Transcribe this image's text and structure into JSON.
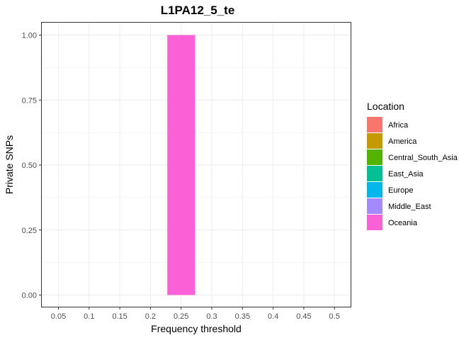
{
  "chart_data": {
    "type": "bar",
    "title": "L1PA12_5_te",
    "xlabel": "Frequency threshold",
    "ylabel": "Private SNPs",
    "categories": [
      "0.05",
      "0.1",
      "0.15",
      "0.2",
      "0.25",
      "0.3",
      "0.35",
      "0.4",
      "0.45",
      "0.5"
    ],
    "ylim": [
      0,
      1
    ],
    "yticks": [
      "0.00",
      "0.25",
      "0.50",
      "0.75",
      "1.00"
    ],
    "ytick_values": [
      0,
      0.25,
      0.5,
      0.75,
      1.0
    ],
    "grid": true,
    "legend": {
      "title": "Location",
      "placement": "right",
      "entries": [
        {
          "name": "Africa",
          "color": "#F8766D"
        },
        {
          "name": "America",
          "color": "#C49A00"
        },
        {
          "name": "Central_South_Asia",
          "color": "#53B400"
        },
        {
          "name": "East_Asia",
          "color": "#00C094"
        },
        {
          "name": "Europe",
          "color": "#00B6EB"
        },
        {
          "name": "Middle_East",
          "color": "#A58AFF"
        },
        {
          "name": "Oceania",
          "color": "#FB61D7"
        }
      ]
    },
    "series": [
      {
        "name": "Oceania",
        "color": "#FB61D7",
        "values": [
          0,
          0,
          0,
          0,
          1,
          0,
          0,
          0,
          0,
          0
        ]
      }
    ]
  }
}
